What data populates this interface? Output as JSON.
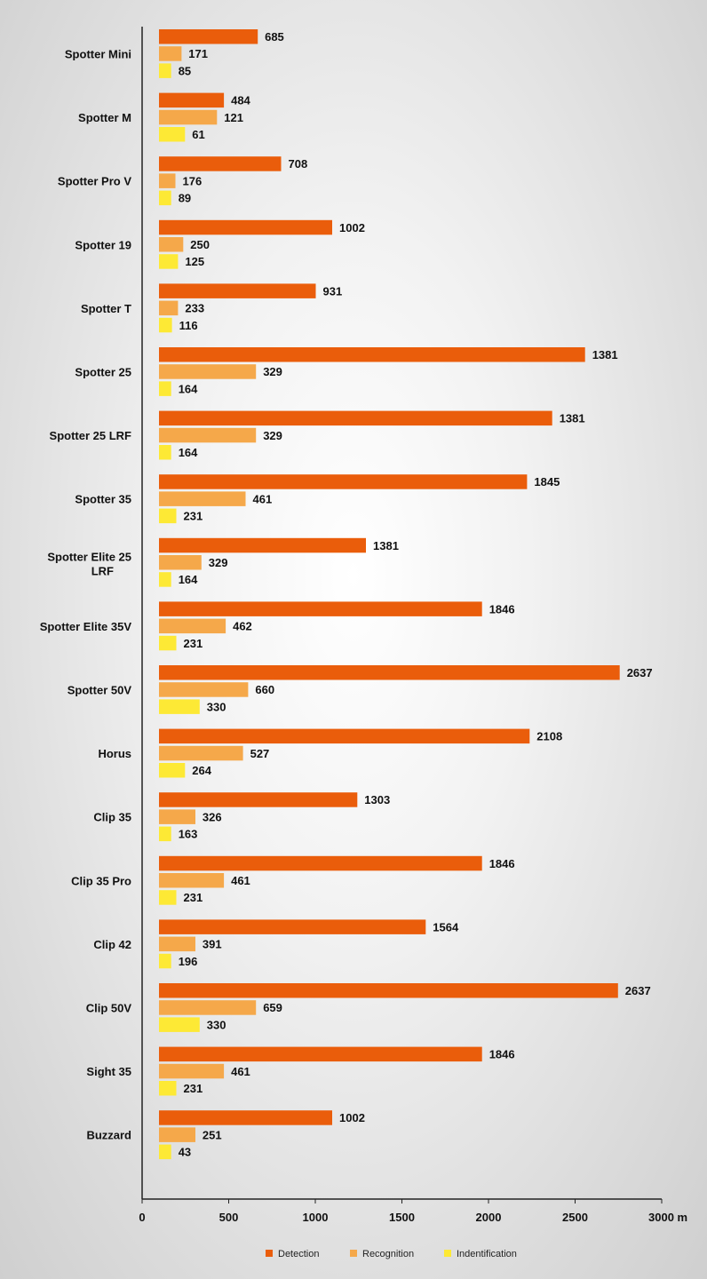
{
  "chart_data": {
    "type": "bar",
    "orientation": "horizontal",
    "categories": [
      "Spotter Mini",
      "Spotter M",
      "Spotter Pro V",
      "Spotter 19",
      "Spotter T",
      "Spotter 25",
      "Spotter 25 LRF",
      "Spotter 35",
      "Spotter Elite 25 LRF",
      "Spotter Elite 35V",
      "Spotter 50V",
      "Horus",
      "Clip 35",
      "Clip 35 Pro",
      "Clip 42",
      "Clip 50V",
      "Sight 35",
      "Buzzard"
    ],
    "series": [
      {
        "name": "Detection",
        "color": "#ea5d0b",
        "values": [
          685,
          484,
          708,
          1002,
          931,
          1381,
          1381,
          1845,
          1381,
          1846,
          2637,
          2108,
          1303,
          1846,
          1564,
          2637,
          1846,
          1002
        ],
        "bar_lengths": [
          570,
          375,
          705,
          1000,
          905,
          2460,
          2270,
          2125,
          1195,
          1865,
          2660,
          2140,
          1145,
          1865,
          1540,
          2650,
          1865,
          1000
        ]
      },
      {
        "name": "Recognition",
        "color": "#f5a84a",
        "values": [
          171,
          121,
          176,
          250,
          233,
          329,
          329,
          461,
          329,
          462,
          660,
          527,
          326,
          461,
          391,
          659,
          461,
          251
        ],
        "bar_lengths": [
          130,
          335,
          95,
          140,
          110,
          560,
          560,
          500,
          245,
          385,
          515,
          485,
          210,
          375,
          210,
          560,
          375,
          210
        ]
      },
      {
        "name": "Indentification",
        "color": "#fde935",
        "values": [
          85,
          61,
          89,
          125,
          116,
          164,
          164,
          231,
          164,
          231,
          330,
          264,
          163,
          231,
          196,
          330,
          231,
          43
        ],
        "bar_lengths": [
          70,
          150,
          70,
          110,
          75,
          70,
          70,
          100,
          70,
          100,
          235,
          150,
          70,
          100,
          70,
          235,
          100,
          70
        ]
      }
    ],
    "xlim": [
      0,
      3000
    ],
    "xticks": [
      "0",
      "500",
      "1000",
      "1500",
      "2000",
      "2500",
      "3000 m"
    ],
    "legend_position": "bottom",
    "grid": false
  }
}
